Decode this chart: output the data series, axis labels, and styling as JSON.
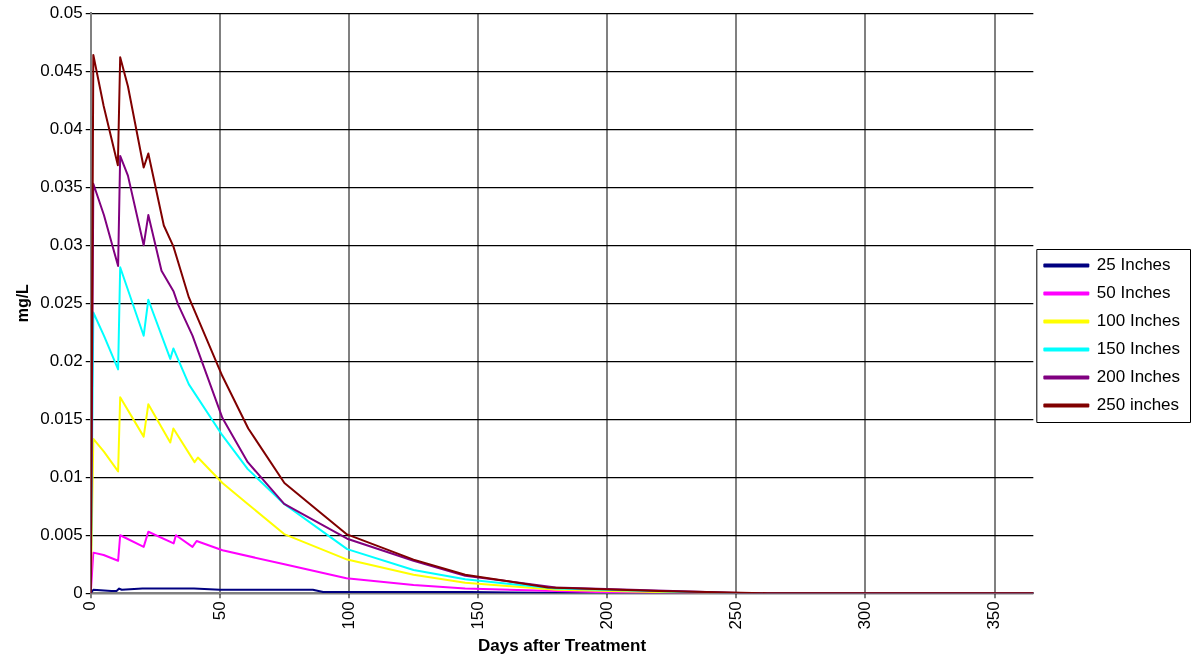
{
  "chart_data": {
    "type": "line",
    "xlabel": "Days after Treatment",
    "ylabel": "mg/L",
    "xlim": [
      0,
      365
    ],
    "xticks": [
      0,
      50,
      100,
      150,
      200,
      250,
      300,
      350
    ],
    "ylim": [
      0,
      0.05
    ],
    "yticks": [
      0,
      0.005,
      0.01,
      0.015,
      0.02,
      0.025,
      0.03,
      0.035,
      0.04,
      0.045,
      0.05
    ],
    "grid": true,
    "legend": "right",
    "marker": "none",
    "line_style": "solid",
    "series": [
      {
        "name": "25 Inches",
        "color": "#000080",
        "x": [
          0,
          1,
          8,
          10,
          11,
          12,
          20,
          30,
          40,
          50,
          60,
          86,
          90,
          147,
          200,
          365
        ],
        "values": [
          0,
          0.0003,
          0.0002,
          0.0002,
          0.0004,
          0.0003,
          0.0004,
          0.0004,
          0.0004,
          0.0003,
          0.0003,
          0.0003,
          0.0001,
          0.0001,
          0,
          0
        ]
      },
      {
        "name": "50 Inches",
        "color": "#ff00ff",
        "x": [
          0,
          1,
          5,
          10.6,
          11.4,
          20.5,
          22.3,
          32.1,
          33,
          39.4,
          41,
          51,
          75,
          99,
          125,
          145,
          180,
          215,
          365
        ],
        "values": [
          0,
          0.0035,
          0.0033,
          0.0028,
          0.005,
          0.004,
          0.0053,
          0.0043,
          0.005,
          0.004,
          0.0045,
          0.0037,
          0.0025,
          0.0013,
          0.0007,
          0.0004,
          0.0002,
          0,
          0
        ]
      },
      {
        "name": "100 Inches",
        "color": "#ffff00",
        "x": [
          0,
          1,
          5.1,
          10.6,
          11.4,
          20.5,
          22.3,
          30.8,
          32,
          40.2,
          41.5,
          51,
          60.8,
          74.9,
          99.3,
          125,
          145,
          180,
          240,
          365
        ],
        "values": [
          0,
          0.0133,
          0.0122,
          0.0105,
          0.0169,
          0.0135,
          0.0163,
          0.013,
          0.0142,
          0.0113,
          0.0117,
          0.0095,
          0.0077,
          0.0051,
          0.0029,
          0.0016,
          0.0009,
          0.0003,
          0,
          0
        ]
      },
      {
        "name": "150 Inches",
        "color": "#00ffff",
        "x": [
          0,
          1,
          5.1,
          10.6,
          11.4,
          20.5,
          22.3,
          30.8,
          32,
          38,
          51,
          60.8,
          74.9,
          99.3,
          125,
          145,
          180,
          250,
          365
        ],
        "values": [
          0,
          0.0242,
          0.0222,
          0.0193,
          0.0281,
          0.0222,
          0.0253,
          0.0202,
          0.0211,
          0.018,
          0.0136,
          0.0107,
          0.0077,
          0.0038,
          0.002,
          0.0012,
          0.0004,
          0,
          0
        ]
      },
      {
        "name": "200 Inches",
        "color": "#800080",
        "x": [
          0,
          1,
          5.1,
          10.6,
          11.4,
          14.4,
          20.5,
          22.3,
          27.4,
          32.1,
          33.8,
          39.4,
          51,
          60.8,
          74.9,
          99.3,
          125,
          145,
          180,
          255,
          365
        ],
        "values": [
          0,
          0.0353,
          0.0326,
          0.0282,
          0.0377,
          0.036,
          0.03,
          0.0326,
          0.0278,
          0.026,
          0.0249,
          0.0222,
          0.0151,
          0.0113,
          0.0077,
          0.0047,
          0.0028,
          0.0015,
          0.0005,
          0,
          0
        ]
      },
      {
        "name": "250 inches",
        "color": "#800000",
        "x": [
          0,
          1,
          5,
          10.5,
          11.4,
          14.4,
          20.5,
          22.3,
          28.3,
          32,
          38,
          51,
          61,
          75,
          99,
          125,
          145,
          177,
          220,
          262,
          365
        ],
        "values": [
          0,
          0.0464,
          0.042,
          0.0369,
          0.0462,
          0.0437,
          0.0367,
          0.0379,
          0.0317,
          0.0299,
          0.0255,
          0.0187,
          0.0142,
          0.0095,
          0.0051,
          0.0029,
          0.0016,
          0.0005,
          0.0002,
          0,
          0
        ]
      }
    ]
  }
}
